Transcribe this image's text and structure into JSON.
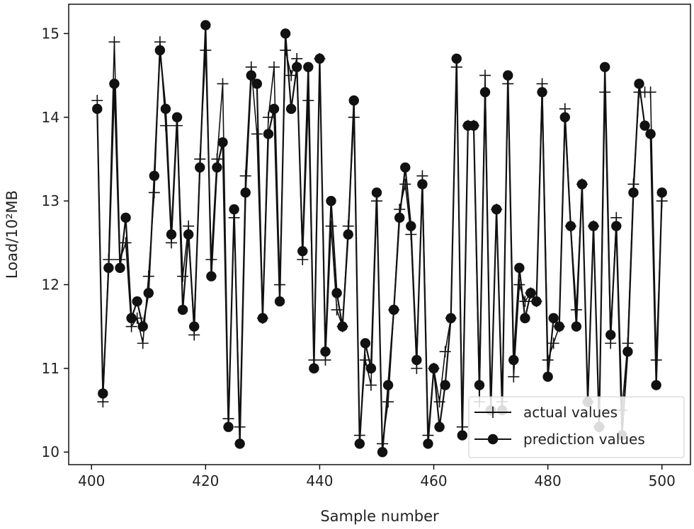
{
  "chart_data": {
    "type": "line",
    "xlabel": "Sample number",
    "ylabel": "Load/10²MB",
    "xlim": [
      396,
      505
    ],
    "ylim": [
      9.85,
      15.35
    ],
    "xticks": [
      400,
      420,
      440,
      460,
      480,
      500
    ],
    "yticks": [
      10,
      11,
      12,
      13,
      14,
      15
    ],
    "grid": false,
    "legend_position": "lower-right",
    "x": [
      401,
      402,
      403,
      404,
      405,
      406,
      407,
      408,
      409,
      410,
      411,
      412,
      413,
      414,
      415,
      416,
      417,
      418,
      419,
      420,
      421,
      422,
      423,
      424,
      425,
      426,
      427,
      428,
      429,
      430,
      431,
      432,
      433,
      434,
      435,
      436,
      437,
      438,
      439,
      440,
      441,
      442,
      443,
      444,
      445,
      446,
      447,
      448,
      449,
      450,
      451,
      452,
      453,
      454,
      455,
      456,
      457,
      458,
      459,
      460,
      461,
      462,
      463,
      464,
      465,
      466,
      467,
      468,
      469,
      470,
      471,
      472,
      473,
      474,
      475,
      476,
      477,
      478,
      479,
      480,
      481,
      482,
      483,
      484,
      485,
      486,
      487,
      488,
      489,
      490,
      491,
      492,
      493,
      494,
      495,
      496,
      497,
      498,
      499,
      500
    ],
    "series": [
      {
        "name": "actual values",
        "marker": "+",
        "values": [
          14.2,
          10.6,
          12.3,
          14.9,
          12.3,
          12.5,
          11.5,
          11.6,
          11.3,
          12.1,
          13.1,
          14.9,
          13.9,
          12.5,
          13.9,
          12.1,
          12.7,
          11.4,
          13.5,
          14.8,
          12.3,
          13.5,
          14.4,
          10.4,
          12.8,
          10.3,
          13.3,
          14.6,
          13.8,
          11.6,
          14.0,
          14.6,
          12.0,
          14.8,
          14.5,
          14.7,
          12.3,
          14.2,
          11.1,
          14.7,
          11.1,
          12.7,
          11.7,
          11.5,
          12.7,
          14.0,
          10.2,
          11.1,
          10.8,
          13.0,
          10.1,
          10.6,
          11.7,
          12.9,
          13.2,
          12.6,
          11.0,
          13.3,
          10.2,
          11.0,
          10.6,
          11.2,
          11.6,
          14.6,
          10.3,
          13.9,
          13.9,
          10.6,
          14.5,
          10.5,
          12.9,
          10.6,
          14.4,
          10.9,
          12.0,
          11.8,
          11.9,
          11.8,
          14.4,
          11.1,
          11.3,
          11.5,
          14.1,
          12.7,
          11.7,
          13.2,
          10.6,
          12.7,
          10.3,
          14.3,
          11.3,
          12.8,
          10.5,
          11.3,
          13.2,
          14.3,
          14.3,
          14.3,
          11.1,
          13.0
        ]
      },
      {
        "name": "prediction values",
        "marker": "o",
        "values": [
          14.1,
          10.7,
          12.2,
          14.4,
          12.2,
          12.8,
          11.6,
          11.8,
          11.5,
          11.9,
          13.3,
          14.8,
          14.1,
          12.6,
          14.0,
          11.7,
          12.6,
          11.5,
          13.4,
          15.1,
          12.1,
          13.4,
          13.7,
          10.3,
          12.9,
          10.1,
          13.1,
          14.5,
          14.4,
          11.6,
          13.8,
          14.1,
          11.8,
          15.0,
          14.1,
          14.6,
          12.4,
          14.6,
          11.0,
          14.7,
          11.2,
          13.0,
          11.9,
          11.5,
          12.6,
          14.2,
          10.1,
          11.3,
          11.0,
          13.1,
          10.0,
          10.8,
          11.7,
          12.8,
          13.4,
          12.7,
          11.1,
          13.2,
          10.1,
          11.0,
          10.3,
          10.8,
          11.6,
          14.7,
          10.2,
          13.9,
          13.9,
          10.8,
          14.3,
          10.5,
          12.9,
          10.5,
          14.5,
          11.1,
          12.2,
          11.6,
          11.9,
          11.8,
          14.3,
          10.9,
          11.6,
          11.5,
          14.0,
          12.7,
          11.5,
          13.2,
          10.6,
          12.7,
          10.3,
          14.6,
          11.4,
          12.7,
          10.2,
          11.2,
          13.1,
          14.4,
          13.9,
          13.8,
          10.8,
          13.1
        ]
      }
    ]
  },
  "colors": {
    "line": "#111111",
    "background": "#ffffff"
  }
}
